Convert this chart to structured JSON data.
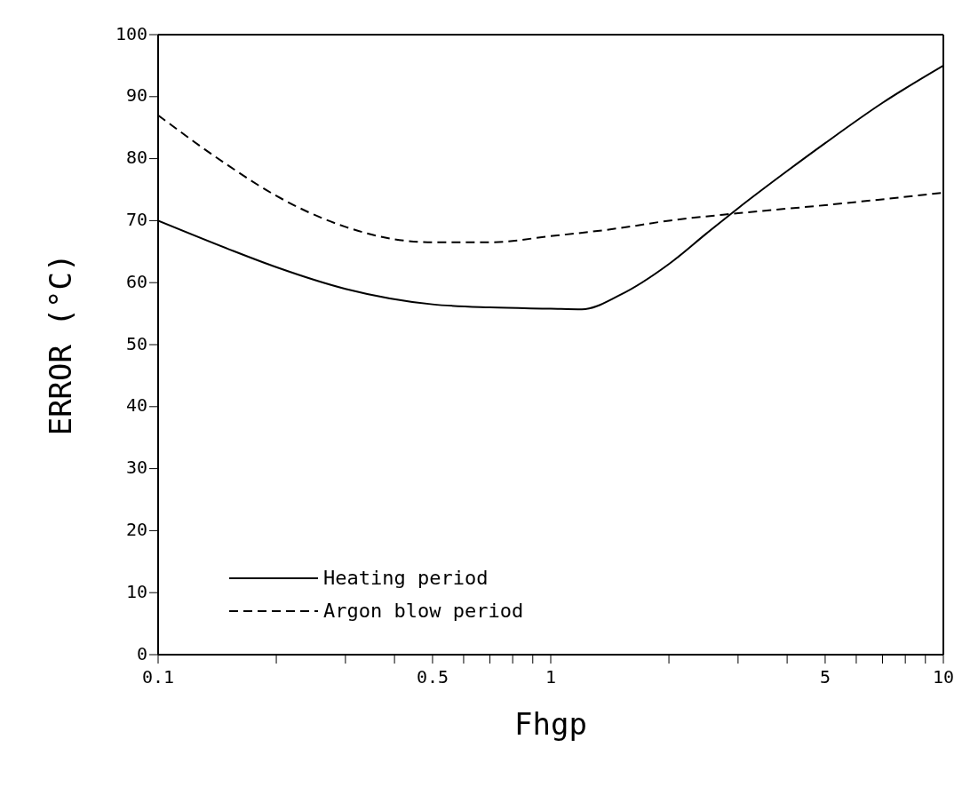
{
  "chart_data": {
    "type": "line",
    "xlabel": "Fhgp",
    "ylabel": "ERROR (°C)",
    "log": "x",
    "xlim": [
      0.1,
      10
    ],
    "ylim": [
      0,
      100
    ],
    "xticks": [
      0.1,
      {
        "value": 0.2,
        "label": null
      },
      {
        "value": 0.3,
        "label": null
      },
      {
        "value": 0.4,
        "label": null
      },
      0.5,
      {
        "value": 0.6,
        "label": null
      },
      {
        "value": 0.7,
        "label": null
      },
      {
        "value": 0.8,
        "label": null
      },
      {
        "value": 0.9,
        "label": null
      },
      1,
      {
        "value": 2,
        "label": null
      },
      {
        "value": 3,
        "label": null
      },
      {
        "value": 4,
        "label": null
      },
      5,
      {
        "value": 6,
        "label": null
      },
      {
        "value": 7,
        "label": null
      },
      {
        "value": 8,
        "label": null
      },
      {
        "value": 9,
        "label": null
      },
      10
    ],
    "yticks": [
      0,
      10,
      20,
      30,
      40,
      50,
      60,
      70,
      80,
      90,
      100
    ],
    "grid": false,
    "legend": "bottom left",
    "marker": "none",
    "series": [
      {
        "name": "Heating period",
        "color": "#000000",
        "line_style": "solid",
        "x": [
          0.1,
          0.15,
          0.2,
          0.3,
          0.5,
          0.7,
          1,
          1.2,
          1.5,
          2,
          2.5,
          3,
          4,
          5,
          7,
          10
        ],
        "values": [
          70,
          65.5,
          62.5,
          59,
          56.5,
          56,
          55.8,
          55.7,
          58,
          63,
          68,
          72,
          78,
          82.5,
          89,
          95
        ]
      },
      {
        "name": "Argon blow period",
        "color": "#000000",
        "line_style": "dashed",
        "x": [
          0.1,
          0.15,
          0.2,
          0.3,
          0.4,
          0.5,
          0.7,
          1,
          1.5,
          2,
          3,
          5,
          10
        ],
        "values": [
          87,
          79,
          74,
          69,
          67,
          66.5,
          66.5,
          67.5,
          68.8,
          70,
          71.2,
          72.5,
          74.5
        ]
      }
    ]
  }
}
